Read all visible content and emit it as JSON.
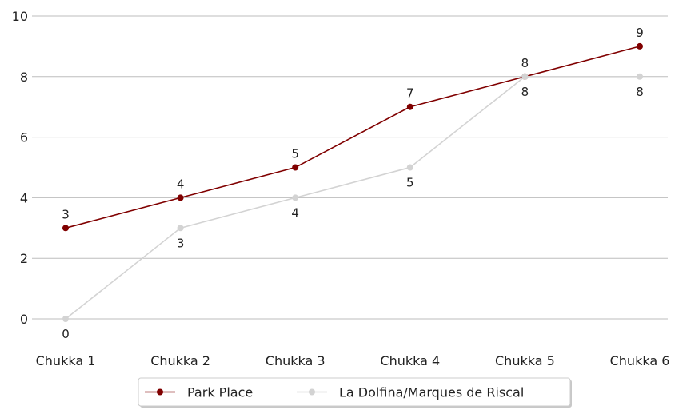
{
  "chart_data": {
    "type": "line",
    "categories": [
      "Chukka 1",
      "Chukka 2",
      "Chukka 3",
      "Chukka 4",
      "Chukka 5",
      "Chukka 6"
    ],
    "series": [
      {
        "name": "Park Place",
        "values": [
          3,
          4,
          5,
          7,
          8,
          9
        ],
        "color": "#800000",
        "label_position": "above"
      },
      {
        "name": "La Dolfina/Marques de Riscal",
        "values": [
          0,
          3,
          4,
          5,
          8,
          8
        ],
        "color": "#d3d3d3",
        "label_position": "below"
      }
    ],
    "ylim": [
      0,
      10
    ],
    "yticks": [
      0,
      2,
      4,
      6,
      8,
      10
    ],
    "grid": "horizontal",
    "legend": "bottom-center",
    "title": "",
    "xlabel": "",
    "ylabel": ""
  }
}
